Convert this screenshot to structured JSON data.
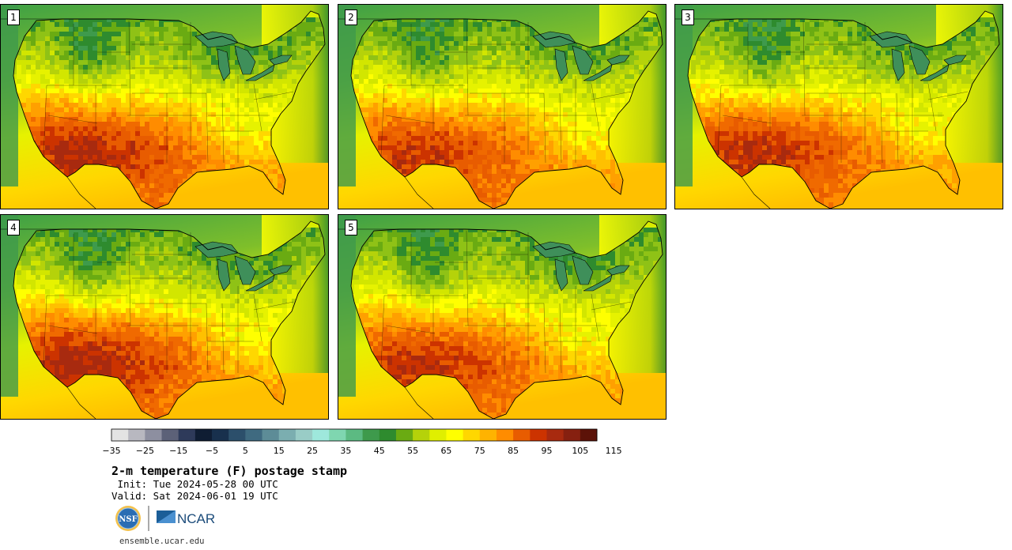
{
  "panels": [
    {
      "label": "1",
      "heat": 1.0,
      "north": 0.55
    },
    {
      "label": "2",
      "heat": 0.85,
      "north": 0.45
    },
    {
      "label": "3",
      "heat": 0.95,
      "north": 0.35
    },
    {
      "label": "4",
      "heat": 1.05,
      "north": 0.5
    },
    {
      "label": "5",
      "heat": 0.9,
      "north": 0.55
    }
  ],
  "colorbar": {
    "colors": [
      "#e3e3e3",
      "#b8b8c0",
      "#8d8fa0",
      "#5c6178",
      "#2e3a5a",
      "#0f1d33",
      "#18304d",
      "#2c4f6b",
      "#3f6a80",
      "#5d8c97",
      "#7baeb0",
      "#99ccc6",
      "#9ee8dc",
      "#7fd6b0",
      "#5cba82",
      "#3e9a4c",
      "#2e8b2e",
      "#6aab12",
      "#b5d20a",
      "#e0ef00",
      "#ffff00",
      "#ffd700",
      "#ffb300",
      "#ff8c00",
      "#e85c00",
      "#cc3300",
      "#a82a0f",
      "#862010",
      "#5c1208"
    ],
    "tick_labels": [
      "−35",
      "−25",
      "−15",
      "−5",
      "5",
      "15",
      "25",
      "35",
      "45",
      "55",
      "65",
      "75",
      "85",
      "95",
      "105",
      "115"
    ]
  },
  "title": "2-m temperature (F) postage stamp",
  "init_line": " Init: Tue 2024-05-28 00 UTC",
  "valid_line": "Valid: Sat 2024-06-01 19 UTC",
  "logos": {
    "nsf": "NSF",
    "ncar": "NCAR"
  },
  "url": "ensemble.ucar.edu"
}
